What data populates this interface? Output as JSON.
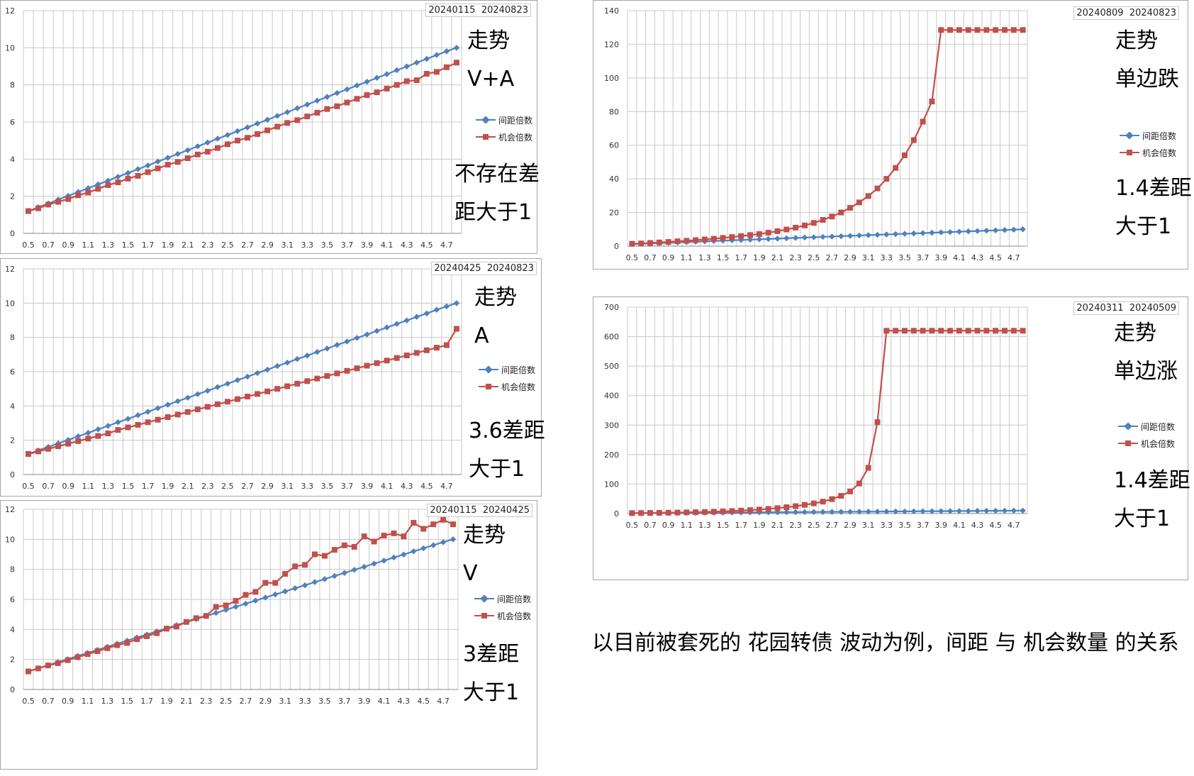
{
  "colors": {
    "spacing": "#4f81bd",
    "opportunity": "#c0504d",
    "grid": "#c8c8c8"
  },
  "legend": {
    "spacing": "间距倍数",
    "opportunity": "机会倍数"
  },
  "caption": "以目前被套死的 花园转债 波动为例，间距 与 机会数量 的关系",
  "x_categories": [
    "0.5",
    "0.6",
    "0.7",
    "0.8",
    "0.9",
    "1",
    "1.1",
    "1.2",
    "1.3",
    "1.4",
    "1.5",
    "1.6",
    "1.7",
    "1.8",
    "1.9",
    "2",
    "2.1",
    "2.2",
    "2.3",
    "2.4",
    "2.5",
    "2.6",
    "2.7",
    "2.8",
    "2.9",
    "3",
    "3.1",
    "3.2",
    "3.3",
    "3.4",
    "3.5",
    "3.6",
    "3.7",
    "3.8",
    "3.9",
    "4",
    "4.1",
    "4.2",
    "4.3",
    "4.4",
    "4.5",
    "4.6",
    "4.7",
    "4.8"
  ],
  "charts": [
    {
      "id": "c1",
      "date_start": "20240115",
      "date_end": "20240823",
      "note_lines": [
        "走势",
        "V+A",
        "不存在差",
        "距大于1"
      ],
      "chart_data": {
        "type": "line",
        "ylim": [
          0,
          12
        ],
        "ystep": 2,
        "x_tick_labels": [
          "0.5",
          "0.7",
          "0.9",
          "1.1",
          "1.3",
          "1.5",
          "1.7",
          "1.9",
          "2.1",
          "2.3",
          "2.5",
          "2.7",
          "2.9",
          "3.1",
          "3.3",
          "3.5",
          "3.7",
          "3.9",
          "4.1",
          "4.3",
          "4.5",
          "4.7"
        ],
        "series": [
          {
            "name": "间距倍数",
            "values": [
              1.2,
              1.41,
              1.61,
              1.82,
              2.02,
              2.23,
              2.43,
              2.64,
              2.84,
              3.05,
              3.25,
              3.46,
              3.66,
              3.87,
              4.07,
              4.28,
              4.48,
              4.69,
              4.89,
              5.1,
              5.3,
              5.51,
              5.71,
              5.92,
              6.12,
              6.33,
              6.53,
              6.74,
              6.94,
              7.15,
              7.35,
              7.56,
              7.76,
              7.97,
              8.17,
              8.38,
              8.58,
              8.79,
              8.99,
              9.2,
              9.4,
              9.61,
              9.81,
              10.0
            ]
          },
          {
            "name": "机会倍数",
            "values": [
              1.2,
              1.35,
              1.55,
              1.7,
              1.85,
              2.05,
              2.2,
              2.4,
              2.6,
              2.75,
              2.95,
              3.1,
              3.3,
              3.5,
              3.7,
              3.85,
              4.05,
              4.25,
              4.4,
              4.6,
              4.8,
              5.0,
              5.15,
              5.35,
              5.55,
              5.75,
              5.95,
              6.1,
              6.3,
              6.5,
              6.7,
              6.85,
              7.05,
              7.25,
              7.45,
              7.6,
              7.8,
              8.0,
              8.2,
              8.25,
              8.6,
              8.7,
              8.95,
              9.2
            ]
          }
        ]
      }
    },
    {
      "id": "c2",
      "date_start": "20240425",
      "date_end": "20240823",
      "note_lines": [
        "走势",
        "A",
        "3.6差距",
        "大于1"
      ],
      "chart_data": {
        "type": "line",
        "ylim": [
          0,
          12
        ],
        "ystep": 2,
        "x_tick_labels": [
          "0.5",
          "0.7",
          "0.9",
          "1.1",
          "1.3",
          "1.5",
          "1.7",
          "1.9",
          "2.1",
          "2.3",
          "2.5",
          "2.7",
          "2.9",
          "3.1",
          "3.3",
          "3.5",
          "3.7",
          "3.9",
          "4.1",
          "4.3",
          "4.5",
          "4.7"
        ],
        "series": [
          {
            "name": "间距倍数",
            "values": [
              1.2,
              1.41,
              1.61,
              1.82,
              2.02,
              2.23,
              2.43,
              2.64,
              2.84,
              3.05,
              3.25,
              3.46,
              3.66,
              3.87,
              4.07,
              4.28,
              4.48,
              4.69,
              4.89,
              5.1,
              5.3,
              5.51,
              5.71,
              5.92,
              6.12,
              6.33,
              6.53,
              6.74,
              6.94,
              7.15,
              7.35,
              7.56,
              7.76,
              7.97,
              8.17,
              8.38,
              8.58,
              8.79,
              8.99,
              9.2,
              9.4,
              9.61,
              9.81,
              10.0
            ]
          },
          {
            "name": "机会倍数",
            "values": [
              1.2,
              1.35,
              1.5,
              1.65,
              1.8,
              1.95,
              2.1,
              2.25,
              2.4,
              2.6,
              2.75,
              2.9,
              3.05,
              3.2,
              3.35,
              3.5,
              3.65,
              3.8,
              3.95,
              4.1,
              4.25,
              4.4,
              4.55,
              4.7,
              4.85,
              5.0,
              5.15,
              5.3,
              5.45,
              5.6,
              5.75,
              5.9,
              6.05,
              6.2,
              6.35,
              6.5,
              6.65,
              6.8,
              6.95,
              7.1,
              7.25,
              7.4,
              7.55,
              8.5
            ]
          }
        ]
      }
    },
    {
      "id": "c3",
      "date_start": "20240115",
      "date_end": "20240425",
      "note_lines": [
        "走势",
        "V",
        "3差距",
        "大于1"
      ],
      "chart_data": {
        "type": "line",
        "ylim": [
          0,
          12
        ],
        "ystep": 2,
        "x_tick_labels": [
          "0.5",
          "0.7",
          "0.9",
          "1.1",
          "1.3",
          "1.5",
          "1.7",
          "1.9",
          "2.1",
          "2.3",
          "2.5",
          "2.7",
          "2.9",
          "3.1",
          "3.3",
          "3.5",
          "3.7",
          "3.9",
          "4.1",
          "4.3",
          "4.5",
          "4.7"
        ],
        "series": [
          {
            "name": "间距倍数",
            "values": [
              1.2,
              1.41,
              1.61,
              1.82,
              2.02,
              2.23,
              2.43,
              2.64,
              2.84,
              3.05,
              3.25,
              3.46,
              3.66,
              3.87,
              4.07,
              4.28,
              4.48,
              4.69,
              4.89,
              5.1,
              5.3,
              5.51,
              5.71,
              5.92,
              6.12,
              6.33,
              6.53,
              6.74,
              6.94,
              7.15,
              7.35,
              7.56,
              7.76,
              7.97,
              8.17,
              8.38,
              8.58,
              8.79,
              8.99,
              9.2,
              9.4,
              9.61,
              9.81,
              10.0
            ]
          },
          {
            "name": "机会倍数",
            "values": [
              1.2,
              1.4,
              1.6,
              1.75,
              1.95,
              2.15,
              2.35,
              2.55,
              2.75,
              2.95,
              3.1,
              3.35,
              3.55,
              3.75,
              4.05,
              4.2,
              4.5,
              4.75,
              4.9,
              5.5,
              5.6,
              5.9,
              6.3,
              6.5,
              7.1,
              7.1,
              7.7,
              8.2,
              8.3,
              9.0,
              8.9,
              9.3,
              9.6,
              9.5,
              10.2,
              9.85,
              10.25,
              10.4,
              10.2,
              11.1,
              10.7,
              11.0,
              11.3,
              11.0
            ]
          }
        ]
      }
    },
    {
      "id": "c4",
      "date_start": "20240809",
      "date_end": "20240823",
      "note_lines": [
        "走势",
        "单边跌",
        "1.4差距",
        "大于1"
      ],
      "chart_data": {
        "type": "line",
        "ylim": [
          0,
          140
        ],
        "ystep": 20,
        "x_tick_labels": [
          "0.5",
          "0.7",
          "0.9",
          "1.1",
          "1.3",
          "1.5",
          "1.7",
          "1.9",
          "2.1",
          "2.3",
          "2.5",
          "2.7",
          "2.9",
          "3.1",
          "3.3",
          "3.5",
          "3.7",
          "3.9",
          "4.1",
          "4.3",
          "4.5",
          "4.7"
        ],
        "series": [
          {
            "name": "间距倍数",
            "values": [
              1.2,
              1.41,
              1.61,
              1.82,
              2.02,
              2.23,
              2.43,
              2.64,
              2.84,
              3.05,
              3.25,
              3.46,
              3.66,
              3.87,
              4.07,
              4.28,
              4.48,
              4.69,
              4.89,
              5.1,
              5.3,
              5.51,
              5.71,
              5.92,
              6.12,
              6.33,
              6.53,
              6.74,
              6.94,
              7.15,
              7.35,
              7.56,
              7.76,
              7.97,
              8.17,
              8.38,
              8.58,
              8.79,
              8.99,
              9.2,
              9.4,
              9.61,
              9.81,
              10.0
            ]
          },
          {
            "name": "机会倍数",
            "values": [
              1.4,
              1.6,
              1.9,
              2.2,
              2.5,
              2.9,
              3.2,
              3.6,
              4.0,
              4.4,
              4.9,
              5.4,
              6.0,
              6.6,
              7.2,
              8.0,
              8.9,
              9.9,
              11.0,
              12.3,
              13.8,
              15.6,
              17.6,
              20.0,
              22.8,
              26.0,
              29.8,
              34.3,
              40.0,
              46.5,
              54.0,
              63.0,
              74.0,
              86.0,
              128.5,
              128.5,
              128.5,
              128.5,
              128.5,
              128.5,
              128.5,
              128.5,
              128.5,
              128.5
            ]
          }
        ]
      }
    },
    {
      "id": "c5",
      "date_start": "20240311",
      "date_end": "20240509",
      "note_lines": [
        "走势",
        "单边涨",
        "1.4差距",
        "大于1"
      ],
      "chart_data": {
        "type": "line",
        "ylim": [
          0,
          700
        ],
        "ystep": 100,
        "x_tick_labels": [
          "0.5",
          "0.7",
          "0.9",
          "1.1",
          "1.3",
          "1.5",
          "1.7",
          "1.9",
          "2.1",
          "2.3",
          "2.5",
          "2.7",
          "2.9",
          "3.1",
          "3.3",
          "3.5",
          "3.7",
          "3.9",
          "4.1",
          "4.3",
          "4.5",
          "4.7"
        ],
        "series": [
          {
            "name": "间距倍数",
            "values": [
              1.2,
              1.41,
              1.61,
              1.82,
              2.02,
              2.23,
              2.43,
              2.64,
              2.84,
              3.05,
              3.25,
              3.46,
              3.66,
              3.87,
              4.07,
              4.28,
              4.48,
              4.69,
              4.89,
              5.1,
              5.3,
              5.51,
              5.71,
              5.92,
              6.12,
              6.33,
              6.53,
              6.74,
              6.94,
              7.15,
              7.35,
              7.56,
              7.76,
              7.97,
              8.17,
              8.38,
              8.58,
              8.79,
              8.99,
              9.2,
              9.4,
              9.61,
              9.81,
              10.0
            ]
          },
          {
            "name": "机会倍数",
            "values": [
              1.5,
              1.8,
              2.1,
              2.5,
              2.9,
              3.4,
              4.0,
              4.6,
              5.4,
              6.3,
              7.3,
              8.5,
              10.0,
              11.6,
              13.5,
              15.8,
              18.5,
              21.5,
              25.0,
              29.5,
              34.5,
              40.5,
              49.0,
              60.0,
              75.0,
              102.0,
              155.0,
              310.0,
              620.0,
              620.0,
              620.0,
              620.0,
              620.0,
              620.0,
              620.0,
              620.0,
              620.0,
              620.0,
              620.0,
              620.0,
              620.0,
              620.0,
              620.0,
              620.0
            ]
          }
        ]
      }
    }
  ]
}
